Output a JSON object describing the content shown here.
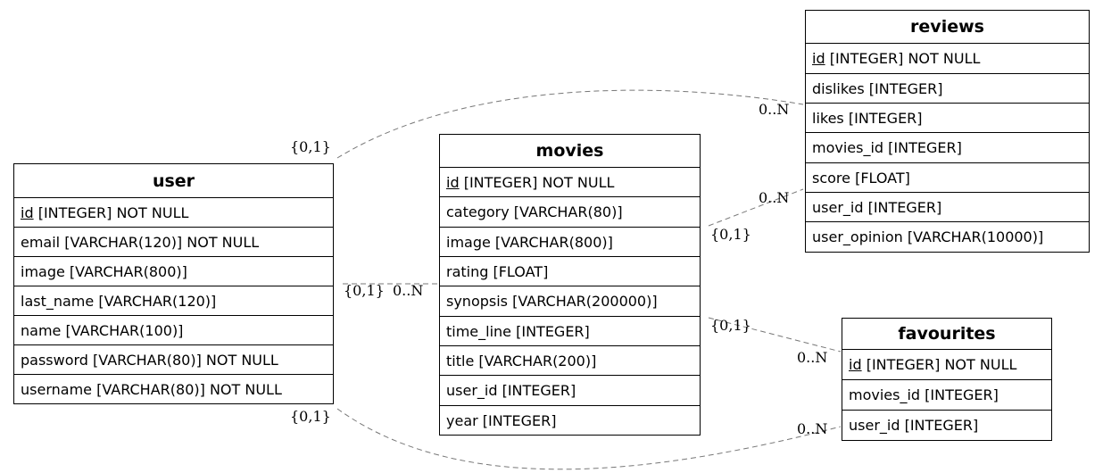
{
  "entities": {
    "user": {
      "name": "user",
      "columns": [
        {
          "pk": "id",
          "rest": " [INTEGER] NOT NULL"
        },
        {
          "text": "email [VARCHAR(120)] NOT NULL"
        },
        {
          "text": "image [VARCHAR(800)]"
        },
        {
          "text": "last_name [VARCHAR(120)]"
        },
        {
          "text": "name [VARCHAR(100)]"
        },
        {
          "text": "password [VARCHAR(80)] NOT NULL"
        },
        {
          "text": "username [VARCHAR(80)] NOT NULL"
        }
      ]
    },
    "movies": {
      "name": "movies",
      "columns": [
        {
          "pk": "id",
          "rest": " [INTEGER] NOT NULL"
        },
        {
          "text": "category [VARCHAR(80)]"
        },
        {
          "text": "image [VARCHAR(800)]"
        },
        {
          "text": "rating [FLOAT]"
        },
        {
          "text": "synopsis [VARCHAR(200000)]"
        },
        {
          "text": "time_line [INTEGER]"
        },
        {
          "text": "title [VARCHAR(200)]"
        },
        {
          "text": "user_id [INTEGER]"
        },
        {
          "text": "year [INTEGER]"
        }
      ]
    },
    "reviews": {
      "name": "reviews",
      "columns": [
        {
          "pk": "id",
          "rest": " [INTEGER] NOT NULL"
        },
        {
          "text": "dislikes [INTEGER]"
        },
        {
          "text": "likes [INTEGER]"
        },
        {
          "text": "movies_id [INTEGER]"
        },
        {
          "text": "score [FLOAT]"
        },
        {
          "text": "user_id [INTEGER]"
        },
        {
          "text": "user_opinion [VARCHAR(10000)]"
        }
      ]
    },
    "favourites": {
      "name": "favourites",
      "columns": [
        {
          "pk": "id",
          "rest": " [INTEGER] NOT NULL"
        },
        {
          "text": "movies_id [INTEGER]"
        },
        {
          "text": "user_id [INTEGER]"
        }
      ]
    }
  },
  "relationships": [
    {
      "from": "user",
      "to": "reviews",
      "from_card": "{0,1}",
      "to_card": "0..N"
    },
    {
      "from": "movies",
      "to": "reviews",
      "from_card": "{0,1}",
      "to_card": "0..N"
    },
    {
      "from": "user",
      "to": "movies",
      "from_card": "{0,1}",
      "to_card": "0..N"
    },
    {
      "from": "movies",
      "to": "favourites",
      "from_card": "{0,1}",
      "to_card": "0..N"
    },
    {
      "from": "user",
      "to": "favourites",
      "from_card": "{0,1}",
      "to_card": "0..N"
    }
  ],
  "colors": {
    "edge": "#777777",
    "border": "#000000"
  }
}
